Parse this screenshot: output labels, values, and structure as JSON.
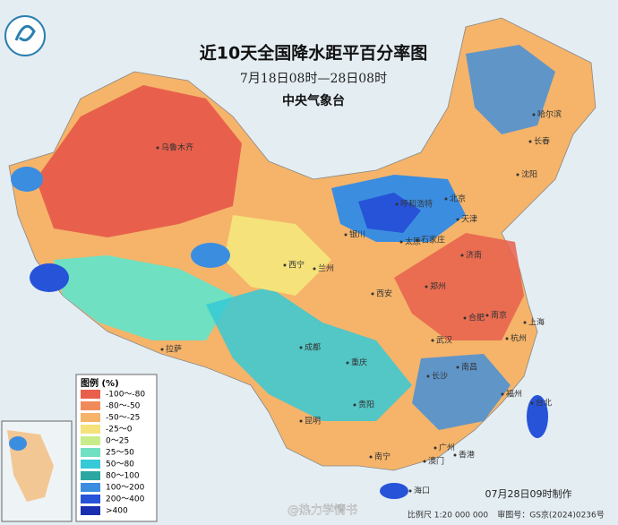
{
  "header": {
    "title": "近10天全国降水距平百分率图",
    "subtitle": "7月18日08时—28日08时",
    "issuer": "中央气象台"
  },
  "legend": {
    "title": "图例 (%)",
    "items": [
      {
        "label": "-100～-80",
        "color": "#e8604c"
      },
      {
        "label": "-80～-50",
        "color": "#f08a5a"
      },
      {
        "label": "-50～-25",
        "color": "#f5b46a"
      },
      {
        "label": "-25～0",
        "color": "#f5e27a"
      },
      {
        "label": "0～25",
        "color": "#c9ec8a"
      },
      {
        "label": "25～50",
        "color": "#6fe0c2"
      },
      {
        "label": "50～80",
        "color": "#36c9d6"
      },
      {
        "label": "80～100",
        "color": "#2aa7a0"
      },
      {
        "label": "100～200",
        "color": "#3b8de0"
      },
      {
        "label": "200～400",
        "color": "#2653d8"
      },
      {
        "label": ">400",
        "color": "#1a2fb0"
      }
    ]
  },
  "cities": [
    "乌鲁木齐",
    "拉萨",
    "西宁",
    "兰州",
    "银川",
    "呼和浩特",
    "北京",
    "天津",
    "石家庄",
    "太原",
    "济南",
    "郑州",
    "西安",
    "成都",
    "重庆",
    "贵阳",
    "昆明",
    "南宁",
    "广州",
    "澳门",
    "香港",
    "海口",
    "长沙",
    "武汉",
    "南昌",
    "福州",
    "台北",
    "杭州",
    "上海",
    "南京",
    "合肥",
    "沈阳",
    "长春",
    "哈尔滨"
  ],
  "footer": {
    "made": "07月28日09时制作",
    "scale": "比例尺 1:20 000 000",
    "approval": "审图号：GS京(2024)0236号",
    "watermark": "@热力学情书"
  }
}
